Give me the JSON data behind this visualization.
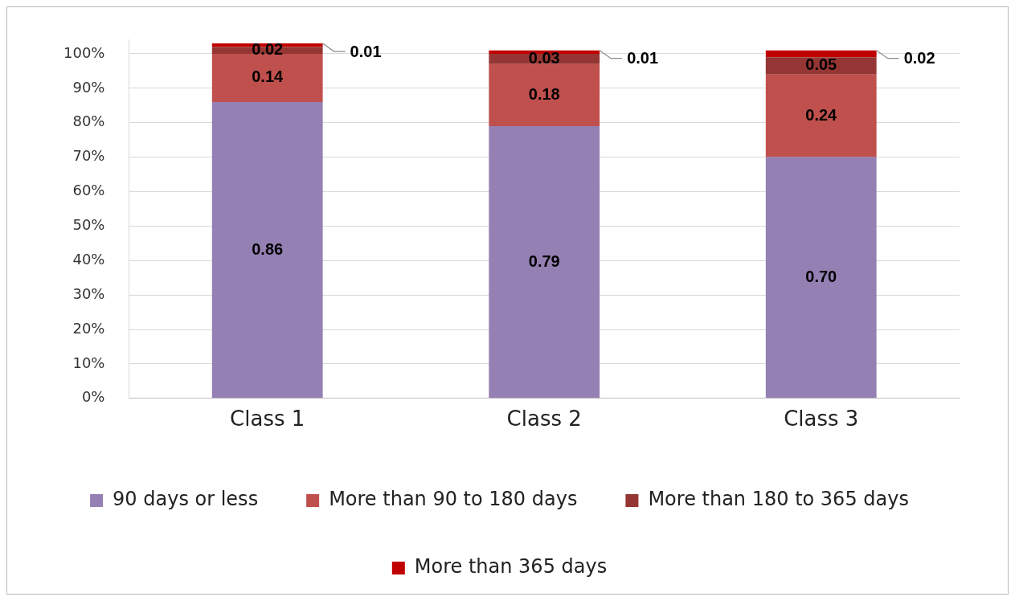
{
  "chart_data": {
    "type": "bar",
    "stacked": true,
    "categories": [
      "Class 1",
      "Class 2",
      "Class 3"
    ],
    "series": [
      {
        "name": "90 days or less",
        "color": "#9580b4",
        "values": [
          0.86,
          0.79,
          0.7
        ],
        "value_labels": [
          "0.86",
          "0.79",
          "0.70"
        ]
      },
      {
        "name": "More than 90 to 180 days",
        "color": "#c0504d",
        "values": [
          0.14,
          0.18,
          0.24
        ],
        "value_labels": [
          "0.14",
          "0.18",
          "0.24"
        ]
      },
      {
        "name": "More than 180 to 365 days",
        "color": "#963634",
        "values": [
          0.02,
          0.03,
          0.05
        ],
        "value_labels": [
          "0.02",
          "0.03",
          "0.05"
        ]
      },
      {
        "name": "More than 365 days",
        "color": "#c00000",
        "values": [
          0.01,
          0.01,
          0.02
        ],
        "value_labels": [
          "0.01",
          "0.01",
          "0.02"
        ]
      }
    ],
    "ylim": [
      0,
      1.04
    ],
    "yticks": [
      {
        "value": 0,
        "label": "0%"
      },
      {
        "value": 0.1,
        "label": "10%"
      },
      {
        "value": 0.2,
        "label": "20%"
      },
      {
        "value": 0.3,
        "label": "30%"
      },
      {
        "value": 0.4,
        "label": "40%"
      },
      {
        "value": 0.5,
        "label": "50%"
      },
      {
        "value": 0.6,
        "label": "60%"
      },
      {
        "value": 0.7,
        "label": "70%"
      },
      {
        "value": 0.8,
        "label": "80%"
      },
      {
        "value": 0.9,
        "label": "90%"
      },
      {
        "value": 1,
        "label": "100%"
      }
    ],
    "grid": "y",
    "legend": "bottom"
  }
}
